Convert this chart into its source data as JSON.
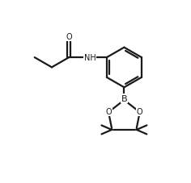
{
  "background_color": "#ffffff",
  "line_color": "#1a1a1a",
  "line_width": 1.6,
  "font_size": 7.0,
  "figsize": [
    2.36,
    2.28
  ],
  "dpi": 100,
  "xlim": [
    0,
    10
  ],
  "ylim": [
    0,
    9.6
  ]
}
